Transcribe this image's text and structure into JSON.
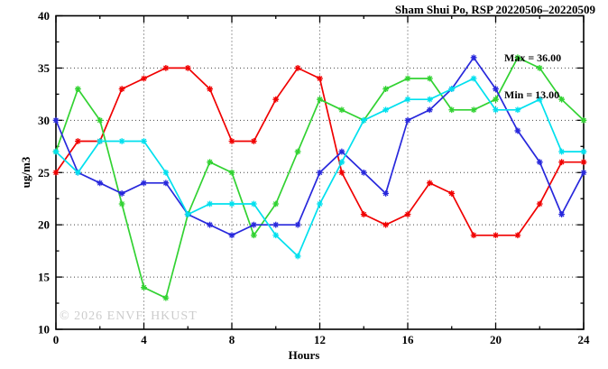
{
  "title": "Sham Shui Po, RSP 20220506–20220509",
  "annotation": {
    "max_label": "Max = 36.00",
    "min_label": "Min = 13.00"
  },
  "watermark": "© 2026 ENVF, HKUST",
  "chart_data": {
    "type": "line",
    "title": "Sham Shui Po, RSP 20220506–20220509",
    "xlabel": "Hours",
    "ylabel": "ug/m3",
    "xlim": [
      0,
      24
    ],
    "ylim": [
      10,
      40
    ],
    "x_major_ticks": [
      0,
      4,
      8,
      12,
      16,
      20,
      24
    ],
    "x_minor_step": 2,
    "y_major_ticks": [
      10,
      15,
      20,
      25,
      30,
      35,
      40
    ],
    "y_minor_step": 2.5,
    "grid": true,
    "legend": "none",
    "x": [
      0,
      1,
      2,
      3,
      4,
      5,
      6,
      7,
      8,
      9,
      10,
      11,
      12,
      13,
      14,
      15,
      16,
      17,
      18,
      19,
      20,
      21,
      22,
      23,
      24
    ],
    "series": [
      {
        "name": "series-red",
        "color": "#f00000",
        "marker": "star",
        "values": [
          25,
          28,
          28,
          33,
          34,
          35,
          35,
          33,
          28,
          28,
          32,
          35,
          34,
          25,
          21,
          20,
          21,
          24,
          23,
          19,
          19,
          19,
          22,
          26,
          26
        ]
      },
      {
        "name": "series-green",
        "color": "#32d232",
        "marker": "star",
        "values": [
          27,
          33,
          30,
          22,
          14,
          13,
          21,
          26,
          25,
          19,
          22,
          27,
          32,
          31,
          30,
          33,
          34,
          34,
          31,
          31,
          32,
          36,
          35,
          32,
          30
        ]
      },
      {
        "name": "series-blue",
        "color": "#2828dc",
        "marker": "star",
        "values": [
          30,
          25,
          24,
          23,
          24,
          24,
          21,
          20,
          19,
          20,
          20,
          20,
          25,
          27,
          25,
          23,
          30,
          31,
          33,
          36,
          33,
          29,
          26,
          21,
          25
        ]
      },
      {
        "name": "series-cyan",
        "color": "#00e0ee",
        "marker": "star",
        "values": [
          27,
          25,
          28,
          28,
          28,
          25,
          21,
          22,
          22,
          22,
          19,
          17,
          22,
          26,
          30,
          31,
          32,
          32,
          33,
          34,
          31,
          31,
          32,
          27,
          27
        ]
      }
    ],
    "stats": {
      "max": 36.0,
      "min": 13.0
    }
  }
}
